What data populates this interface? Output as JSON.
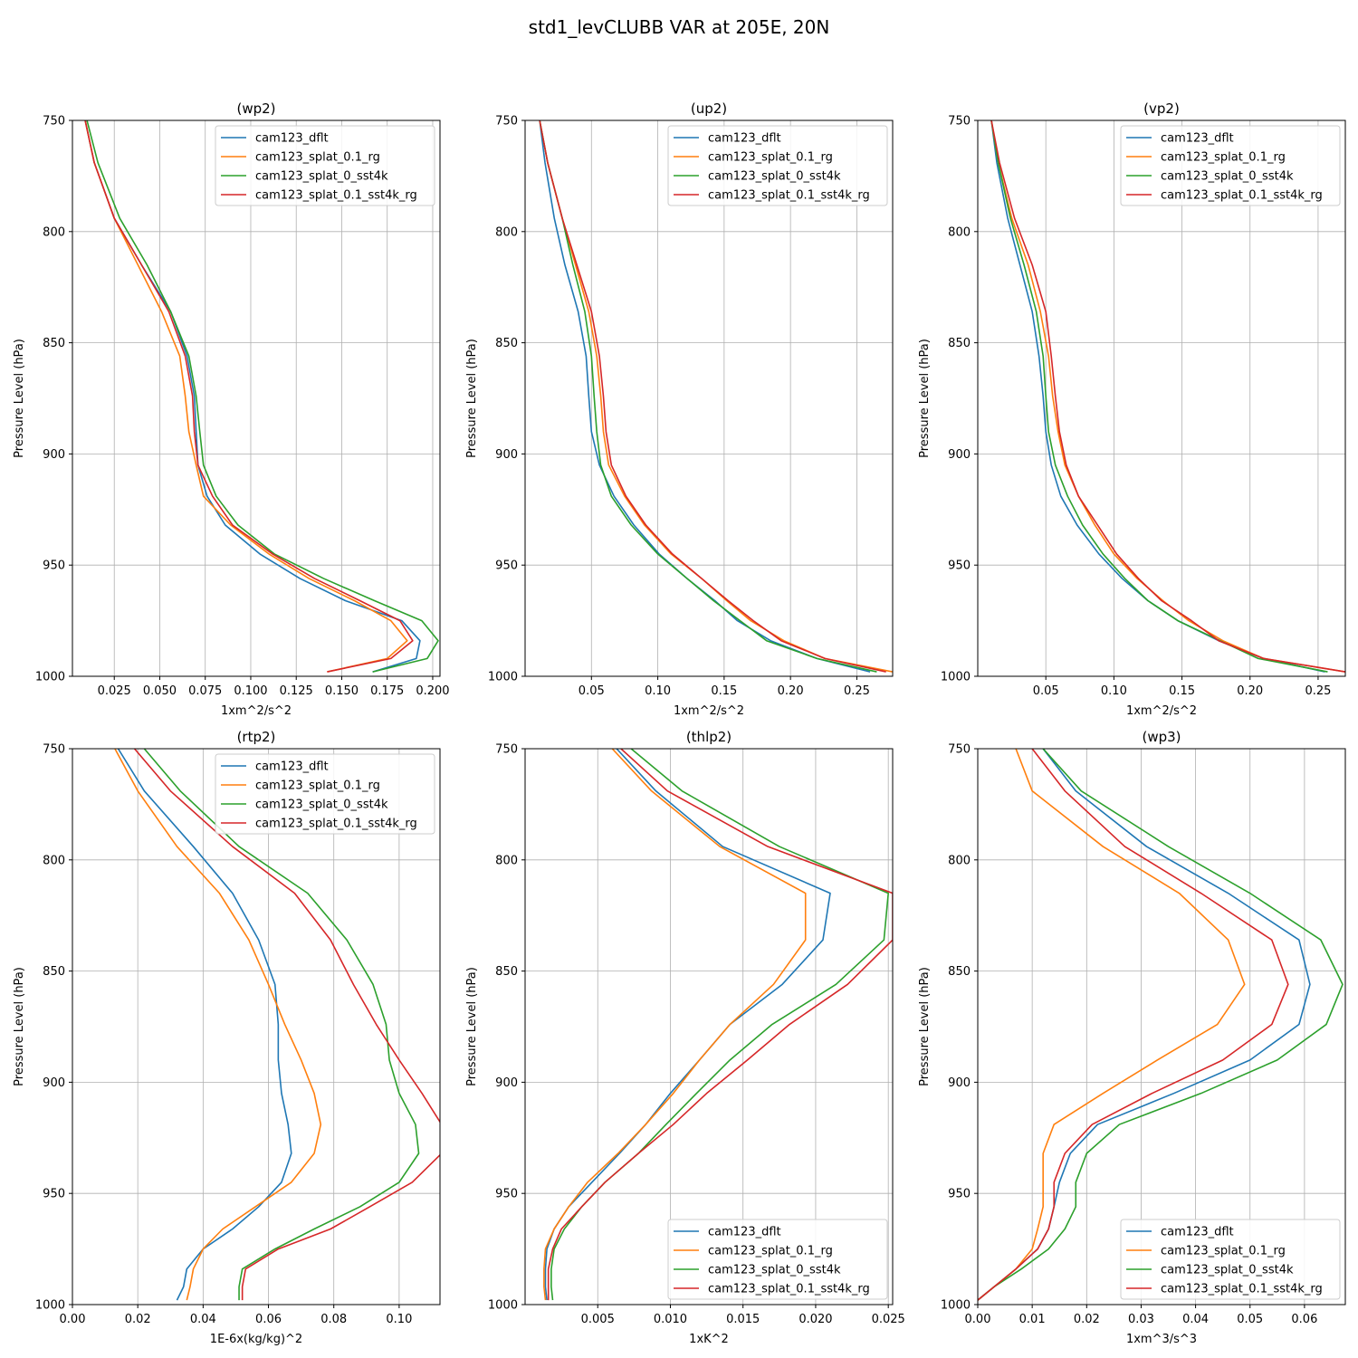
{
  "suptitle": "std1_levCLUBB VAR at 205E, 20N",
  "colors": [
    "#1f77b4",
    "#ff7f0e",
    "#2ca02c",
    "#d62728"
  ],
  "series_names": [
    "cam123_dflt",
    "cam123_splat_0.1_rg",
    "cam123_splat_0_sst4k",
    "cam123_splat_0.1_sst4k_rg"
  ],
  "chart_data": [
    {
      "type": "line",
      "title": "(wp2)",
      "xlabel": "1xm^2/s^2",
      "ylabel": "Pressure Level (hPa)",
      "xlim": [
        0.002,
        0.204
      ],
      "ylim": [
        1000,
        750
      ],
      "xticks": [
        0.025,
        0.05,
        0.075,
        0.1,
        0.125,
        0.15,
        0.175,
        0.2
      ],
      "xtick_labels": [
        "0.025",
        "0.050",
        "0.075",
        "0.100",
        "0.125",
        "0.150",
        "0.175",
        "0.200"
      ],
      "yticks": [
        750,
        800,
        850,
        900,
        950,
        1000
      ],
      "grid": true,
      "legend": "upper right",
      "y": [
        750,
        769,
        794,
        815,
        836,
        856,
        874,
        890,
        905,
        919,
        932,
        945,
        956,
        966,
        975,
        984,
        992,
        998
      ],
      "series": [
        {
          "name": "cam123_dflt",
          "x": [
            0.009,
            0.014,
            0.025,
            0.04,
            0.056,
            0.065,
            0.069,
            0.07,
            0.071,
            0.076,
            0.086,
            0.105,
            0.127,
            0.152,
            0.183,
            0.193,
            0.191,
            0.167
          ]
        },
        {
          "name": "cam123_splat_0.1_rg",
          "x": [
            0.009,
            0.014,
            0.025,
            0.038,
            0.051,
            0.061,
            0.064,
            0.066,
            0.07,
            0.074,
            0.089,
            0.11,
            0.132,
            0.157,
            0.177,
            0.186,
            0.175,
            0.142
          ]
        },
        {
          "name": "cam123_splat_0_sst4k",
          "x": [
            0.01,
            0.016,
            0.028,
            0.043,
            0.056,
            0.066,
            0.07,
            0.072,
            0.074,
            0.081,
            0.093,
            0.113,
            0.14,
            0.168,
            0.194,
            0.203,
            0.197,
            0.167
          ]
        },
        {
          "name": "cam123_splat_0.1_sst4k_rg",
          "x": [
            0.009,
            0.014,
            0.025,
            0.04,
            0.055,
            0.064,
            0.068,
            0.069,
            0.071,
            0.079,
            0.09,
            0.112,
            0.135,
            0.16,
            0.182,
            0.189,
            0.177,
            0.142
          ]
        }
      ]
    },
    {
      "type": "line",
      "title": "(up2)",
      "xlabel": "1xm^2/s^2",
      "ylabel": "Pressure Level (hPa)",
      "xlim": [
        0.0,
        0.277
      ],
      "ylim": [
        1000,
        750
      ],
      "xticks": [
        0.05,
        0.1,
        0.15,
        0.2,
        0.25
      ],
      "xtick_labels": [
        "0.05",
        "0.10",
        "0.15",
        "0.20",
        "0.25"
      ],
      "yticks": [
        750,
        800,
        850,
        900,
        950,
        1000
      ],
      "grid": true,
      "legend": "upper right",
      "y": [
        750,
        769,
        794,
        815,
        836,
        856,
        874,
        890,
        905,
        919,
        932,
        945,
        956,
        966,
        975,
        984,
        992,
        998
      ],
      "series": [
        {
          "name": "cam123_dflt",
          "x": [
            0.011,
            0.015,
            0.022,
            0.03,
            0.04,
            0.046,
            0.048,
            0.05,
            0.056,
            0.067,
            0.082,
            0.101,
            0.122,
            0.143,
            0.16,
            0.185,
            0.22,
            0.26
          ]
        },
        {
          "name": "cam123_splat_0.1_rg",
          "x": [
            0.011,
            0.017,
            0.028,
            0.038,
            0.048,
            0.054,
            0.057,
            0.059,
            0.063,
            0.075,
            0.09,
            0.11,
            0.133,
            0.152,
            0.17,
            0.195,
            0.226,
            0.277
          ]
        },
        {
          "name": "cam123_splat_0_sst4k",
          "x": [
            0.011,
            0.017,
            0.028,
            0.036,
            0.045,
            0.05,
            0.052,
            0.054,
            0.057,
            0.065,
            0.08,
            0.1,
            0.122,
            0.142,
            0.162,
            0.182,
            0.22,
            0.265
          ]
        },
        {
          "name": "cam123_splat_0.1_sst4k_rg",
          "x": [
            0.011,
            0.017,
            0.028,
            0.039,
            0.05,
            0.056,
            0.059,
            0.061,
            0.065,
            0.076,
            0.091,
            0.111,
            0.133,
            0.153,
            0.172,
            0.193,
            0.226,
            0.272
          ]
        }
      ]
    },
    {
      "type": "line",
      "title": "(vp2)",
      "xlabel": "1xm^2/s^2",
      "ylabel": "Pressure Level (hPa)",
      "xlim": [
        0.0,
        0.27
      ],
      "ylim": [
        1000,
        750
      ],
      "xticks": [
        0.05,
        0.1,
        0.15,
        0.2,
        0.25
      ],
      "xtick_labels": [
        "0.05",
        "0.10",
        "0.15",
        "0.20",
        "0.25"
      ],
      "yticks": [
        750,
        800,
        850,
        900,
        950,
        1000
      ],
      "grid": true,
      "legend": "upper right",
      "y": [
        750,
        769,
        794,
        815,
        836,
        856,
        874,
        890,
        905,
        919,
        932,
        945,
        956,
        966,
        975,
        984,
        992,
        998
      ],
      "series": [
        {
          "name": "cam123_dflt",
          "x": [
            0.01,
            0.014,
            0.022,
            0.031,
            0.04,
            0.045,
            0.048,
            0.05,
            0.054,
            0.061,
            0.073,
            0.089,
            0.106,
            0.125,
            0.147,
            0.177,
            0.21,
            0.255
          ]
        },
        {
          "name": "cam123_splat_0.1_rg",
          "x": [
            0.01,
            0.015,
            0.025,
            0.037,
            0.046,
            0.052,
            0.055,
            0.059,
            0.064,
            0.074,
            0.086,
            0.1,
            0.117,
            0.136,
            0.155,
            0.18,
            0.21,
            0.27
          ]
        },
        {
          "name": "cam123_splat_0_sst4k",
          "x": [
            0.01,
            0.015,
            0.024,
            0.034,
            0.043,
            0.048,
            0.05,
            0.052,
            0.057,
            0.066,
            0.077,
            0.092,
            0.108,
            0.125,
            0.147,
            0.178,
            0.206,
            0.257
          ]
        },
        {
          "name": "cam123_splat_0.1_sst4k_rg",
          "x": [
            0.01,
            0.016,
            0.027,
            0.04,
            0.05,
            0.054,
            0.057,
            0.06,
            0.065,
            0.074,
            0.088,
            0.102,
            0.118,
            0.135,
            0.157,
            0.177,
            0.21,
            0.27
          ]
        }
      ]
    },
    {
      "type": "line",
      "title": "(rtp2)",
      "xlabel": "1E-6x(kg/kg)^2",
      "ylabel": "Pressure Level (hPa)",
      "xlim": [
        0.0,
        0.1125
      ],
      "ylim": [
        1000,
        750
      ],
      "xticks": [
        0.0,
        0.02,
        0.04,
        0.06,
        0.08,
        0.1
      ],
      "xtick_labels": [
        "0.00",
        "0.02",
        "0.04",
        "0.06",
        "0.08",
        "0.10"
      ],
      "yticks": [
        750,
        800,
        850,
        900,
        950,
        1000
      ],
      "grid": true,
      "legend": "upper right",
      "y": [
        750,
        769,
        794,
        815,
        836,
        856,
        874,
        890,
        905,
        919,
        932,
        945,
        956,
        966,
        975,
        984,
        992,
        998
      ],
      "series": [
        {
          "name": "cam123_dflt",
          "x": [
            0.014,
            0.022,
            0.037,
            0.049,
            0.057,
            0.062,
            0.063,
            0.063,
            0.064,
            0.066,
            0.067,
            0.064,
            0.057,
            0.049,
            0.04,
            0.035,
            0.034,
            0.032
          ]
        },
        {
          "name": "cam123_splat_0.1_rg",
          "x": [
            0.013,
            0.02,
            0.032,
            0.045,
            0.054,
            0.06,
            0.065,
            0.07,
            0.074,
            0.076,
            0.074,
            0.067,
            0.056,
            0.046,
            0.04,
            0.037,
            0.036,
            0.035
          ]
        },
        {
          "name": "cam123_splat_0_sst4k",
          "x": [
            0.022,
            0.033,
            0.051,
            0.072,
            0.084,
            0.092,
            0.096,
            0.097,
            0.1,
            0.105,
            0.106,
            0.1,
            0.088,
            0.074,
            0.062,
            0.052,
            0.051,
            0.051
          ]
        },
        {
          "name": "cam123_splat_0.1_sst4k_rg",
          "x": [
            0.019,
            0.03,
            0.049,
            0.068,
            0.079,
            0.086,
            0.093,
            0.1,
            0.107,
            0.113,
            0.113,
            0.104,
            0.091,
            0.079,
            0.063,
            0.053,
            0.052,
            0.052
          ]
        }
      ]
    },
    {
      "type": "line",
      "title": "(thlp2)",
      "xlabel": "1xK^2",
      "ylabel": "Pressure Level (hPa)",
      "xlim": [
        0.0,
        0.0253
      ],
      "ylim": [
        1000,
        750
      ],
      "xticks": [
        0.005,
        0.01,
        0.015,
        0.02,
        0.025
      ],
      "xtick_labels": [
        "0.005",
        "0.010",
        "0.015",
        "0.020",
        "0.025"
      ],
      "yticks": [
        750,
        800,
        850,
        900,
        950,
        1000
      ],
      "grid": true,
      "legend": "lower right",
      "y": [
        750,
        769,
        794,
        815,
        836,
        856,
        874,
        890,
        905,
        919,
        932,
        945,
        956,
        966,
        975,
        984,
        992,
        998
      ],
      "series": [
        {
          "name": "cam123_dflt",
          "x": [
            0.0063,
            0.009,
            0.0136,
            0.021,
            0.0205,
            0.0177,
            0.0141,
            0.012,
            0.01,
            0.0083,
            0.0065,
            0.0046,
            0.003,
            0.002,
            0.0015,
            0.0014,
            0.0014,
            0.0015
          ]
        },
        {
          "name": "cam123_splat_0.1_rg",
          "x": [
            0.006,
            0.0087,
            0.0134,
            0.0193,
            0.0193,
            0.0171,
            0.0141,
            0.012,
            0.0102,
            0.0083,
            0.0064,
            0.0043,
            0.003,
            0.002,
            0.0014,
            0.0013,
            0.0013,
            0.0014
          ]
        },
        {
          "name": "cam123_splat_0_sst4k",
          "x": [
            0.0073,
            0.0108,
            0.0175,
            0.025,
            0.0247,
            0.0214,
            0.017,
            0.0141,
            0.0118,
            0.0097,
            0.0078,
            0.0055,
            0.0039,
            0.0027,
            0.002,
            0.0018,
            0.0018,
            0.0019
          ]
        },
        {
          "name": "cam123_splat_0.1_sst4k_rg",
          "x": [
            0.0066,
            0.0098,
            0.0167,
            0.0253,
            0.0253,
            0.0222,
            0.0182,
            0.0153,
            0.0125,
            0.0102,
            0.0078,
            0.0055,
            0.0039,
            0.0025,
            0.0019,
            0.0016,
            0.0016,
            0.0016
          ]
        }
      ]
    },
    {
      "type": "line",
      "title": "(wp3)",
      "xlabel": "1xm^3/s^3",
      "ylabel": "Pressure Level (hPa)",
      "xlim": [
        0.0,
        0.0675
      ],
      "ylim": [
        1000,
        750
      ],
      "xticks": [
        0.0,
        0.01,
        0.02,
        0.03,
        0.04,
        0.05,
        0.06
      ],
      "xtick_labels": [
        "0.00",
        "0.01",
        "0.02",
        "0.03",
        "0.04",
        "0.05",
        "0.06"
      ],
      "yticks": [
        750,
        800,
        850,
        900,
        950,
        1000
      ],
      "grid": true,
      "legend": "lower right",
      "y": [
        750,
        769,
        794,
        815,
        836,
        856,
        874,
        890,
        905,
        919,
        932,
        945,
        956,
        966,
        975,
        984,
        992,
        998
      ],
      "series": [
        {
          "name": "cam123_dflt",
          "x": [
            0.012,
            0.018,
            0.031,
            0.046,
            0.059,
            0.061,
            0.059,
            0.05,
            0.036,
            0.022,
            0.017,
            0.015,
            0.014,
            0.013,
            0.011,
            0.007,
            0.003,
            0.0
          ]
        },
        {
          "name": "cam123_splat_0.1_rg",
          "x": [
            0.007,
            0.01,
            0.023,
            0.037,
            0.046,
            0.049,
            0.044,
            0.033,
            0.023,
            0.014,
            0.012,
            0.012,
            0.012,
            0.011,
            0.01,
            0.007,
            0.003,
            0.0
          ]
        },
        {
          "name": "cam123_splat_0_sst4k",
          "x": [
            0.012,
            0.019,
            0.035,
            0.05,
            0.063,
            0.067,
            0.064,
            0.055,
            0.041,
            0.026,
            0.02,
            0.018,
            0.018,
            0.016,
            0.013,
            0.008,
            0.003,
            0.0
          ]
        },
        {
          "name": "cam123_splat_0.1_sst4k_rg",
          "x": [
            0.01,
            0.016,
            0.027,
            0.041,
            0.054,
            0.057,
            0.054,
            0.045,
            0.032,
            0.021,
            0.016,
            0.014,
            0.014,
            0.013,
            0.011,
            0.007,
            0.003,
            0.0
          ]
        }
      ]
    }
  ]
}
